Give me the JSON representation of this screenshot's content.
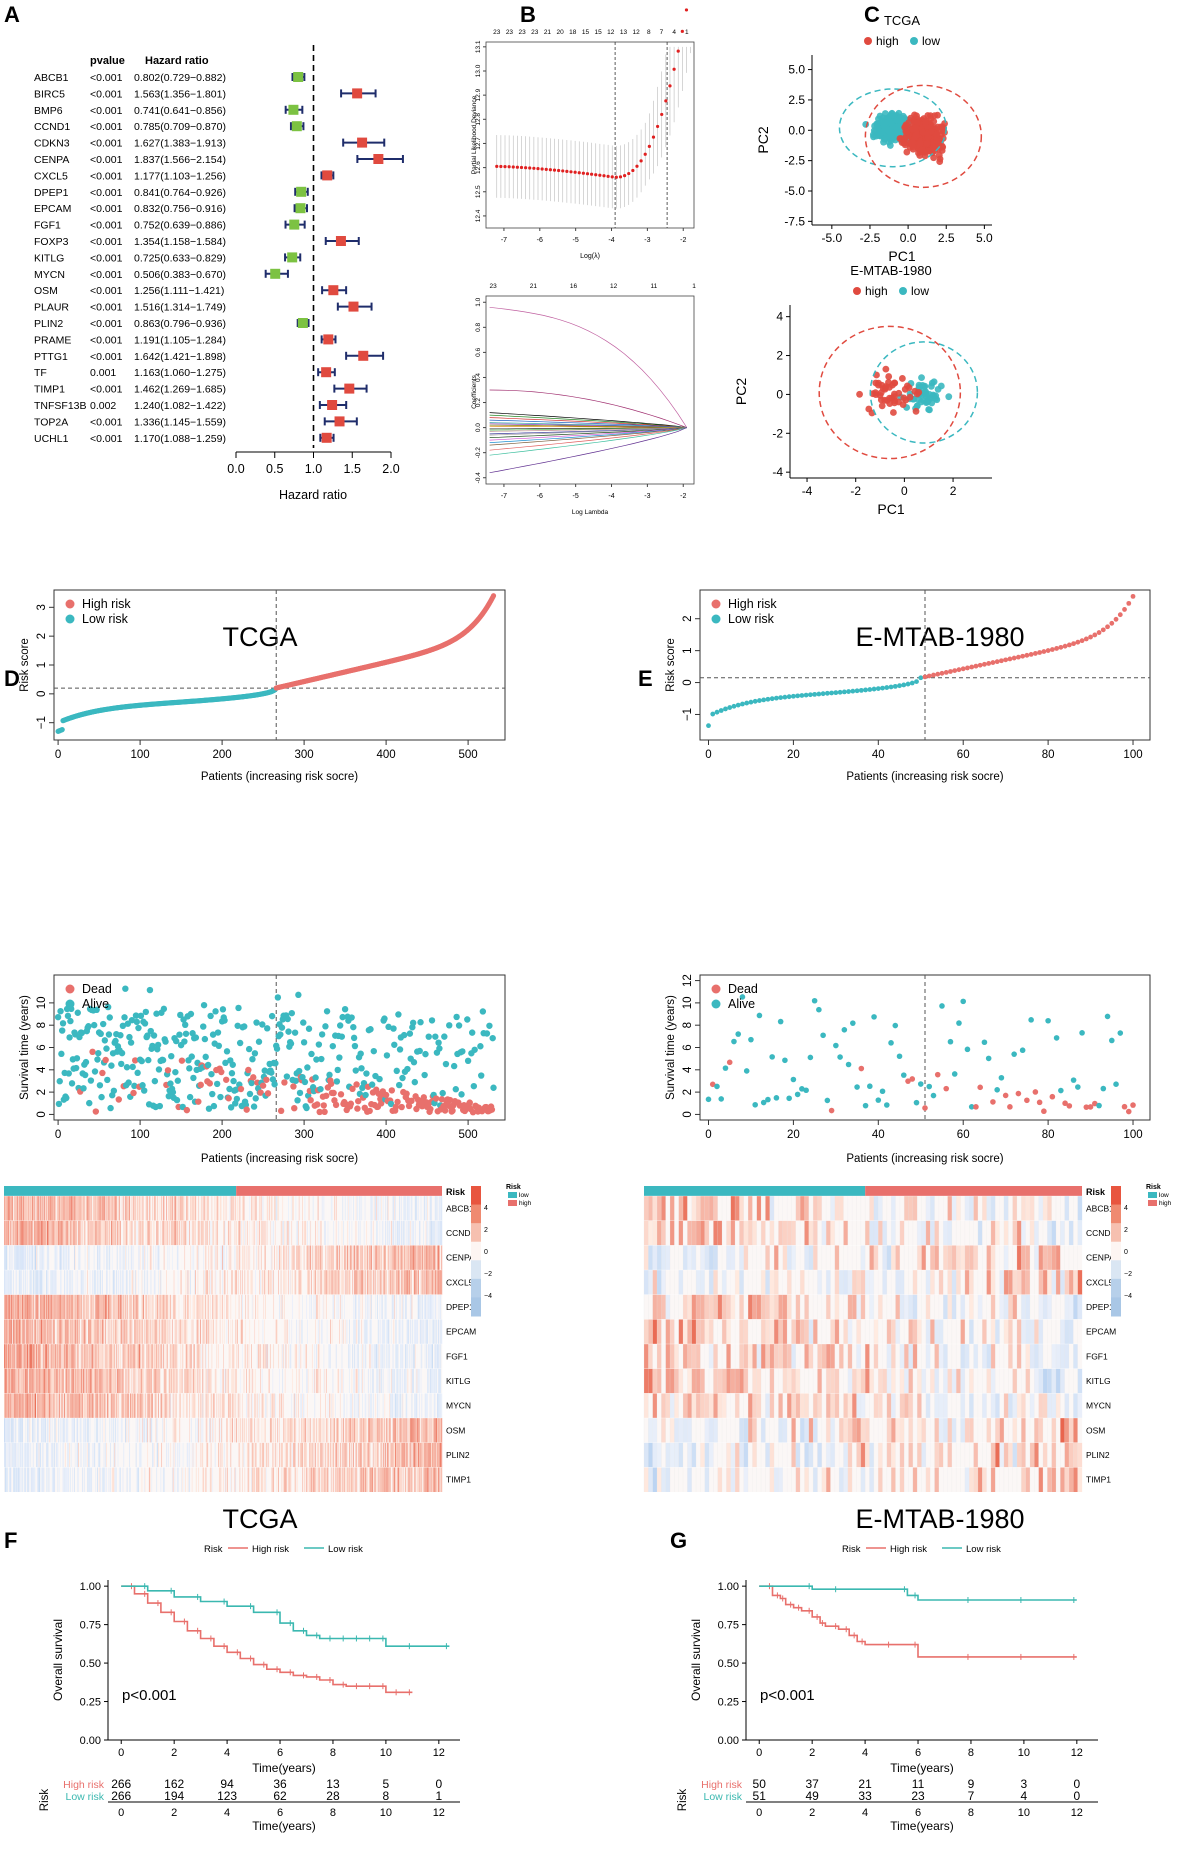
{
  "colors": {
    "red": "#e04a3f",
    "teal": "#3bb8c0",
    "salmon": "#e8706c",
    "green": "#7cc242",
    "navy": "#1f2d6b",
    "km_red": "#e8706c",
    "km_teal": "#3bb8b0"
  },
  "cohorts": {
    "tcga": "TCGA",
    "emtab": "E-MTAB-1980"
  },
  "panels": {
    "A": "A",
    "B": "B",
    "C": "C",
    "D": "D",
    "E": "E",
    "F": "F",
    "G": "G"
  },
  "chart_data": [
    {
      "panel": "A",
      "type": "forest",
      "col_pvalue": "pvalue",
      "col_hr": "Hazard ratio",
      "xlabel": "Hazard ratio",
      "xticks": [
        "0.0",
        "0.5",
        "1.0",
        "1.5",
        "2.0"
      ],
      "xlim": [
        0,
        2
      ],
      "ref_line": 1,
      "rows": [
        {
          "gene": "ABCB1",
          "p": "<0.001",
          "hr_text": "0.802(0.729−0.882)",
          "hr": 0.802,
          "lo": 0.729,
          "hi": 0.882
        },
        {
          "gene": "BIRC5",
          "p": "<0.001",
          "hr_text": "1.563(1.356−1.801)",
          "hr": 1.563,
          "lo": 1.356,
          "hi": 1.801
        },
        {
          "gene": "BMP6",
          "p": "<0.001",
          "hr_text": "0.741(0.641−0.856)",
          "hr": 0.741,
          "lo": 0.641,
          "hi": 0.856
        },
        {
          "gene": "CCND1",
          "p": "<0.001",
          "hr_text": "0.785(0.709−0.870)",
          "hr": 0.785,
          "lo": 0.709,
          "hi": 0.87
        },
        {
          "gene": "CDKN3",
          "p": "<0.001",
          "hr_text": "1.627(1.383−1.913)",
          "hr": 1.627,
          "lo": 1.383,
          "hi": 1.913
        },
        {
          "gene": "CENPA",
          "p": "<0.001",
          "hr_text": "1.837(1.566−2.154)",
          "hr": 1.837,
          "lo": 1.566,
          "hi": 2.154
        },
        {
          "gene": "CXCL5",
          "p": "<0.001",
          "hr_text": "1.177(1.103−1.256)",
          "hr": 1.177,
          "lo": 1.103,
          "hi": 1.256
        },
        {
          "gene": "DPEP1",
          "p": "<0.001",
          "hr_text": "0.841(0.764−0.926)",
          "hr": 0.841,
          "lo": 0.764,
          "hi": 0.926
        },
        {
          "gene": "EPCAM",
          "p": "<0.001",
          "hr_text": "0.832(0.756−0.916)",
          "hr": 0.832,
          "lo": 0.756,
          "hi": 0.916
        },
        {
          "gene": "FGF1",
          "p": "<0.001",
          "hr_text": "0.752(0.639−0.886)",
          "hr": 0.752,
          "lo": 0.639,
          "hi": 0.886
        },
        {
          "gene": "FOXP3",
          "p": "<0.001",
          "hr_text": "1.354(1.158−1.584)",
          "hr": 1.354,
          "lo": 1.158,
          "hi": 1.584
        },
        {
          "gene": "KITLG",
          "p": "<0.001",
          "hr_text": "0.725(0.633−0.829)",
          "hr": 0.725,
          "lo": 0.633,
          "hi": 0.829
        },
        {
          "gene": "MYCN",
          "p": "<0.001",
          "hr_text": "0.506(0.383−0.670)",
          "hr": 0.506,
          "lo": 0.383,
          "hi": 0.67
        },
        {
          "gene": "OSM",
          "p": "<0.001",
          "hr_text": "1.256(1.111−1.421)",
          "hr": 1.256,
          "lo": 1.111,
          "hi": 1.421
        },
        {
          "gene": "PLAUR",
          "p": "<0.001",
          "hr_text": "1.516(1.314−1.749)",
          "hr": 1.516,
          "lo": 1.314,
          "hi": 1.749
        },
        {
          "gene": "PLIN2",
          "p": "<0.001",
          "hr_text": "0.863(0.796−0.936)",
          "hr": 0.863,
          "lo": 0.796,
          "hi": 0.936
        },
        {
          "gene": "PRAME",
          "p": "<0.001",
          "hr_text": "1.191(1.105−1.284)",
          "hr": 1.191,
          "lo": 1.105,
          "hi": 1.284
        },
        {
          "gene": "PTTG1",
          "p": "<0.001",
          "hr_text": "1.642(1.421−1.898)",
          "hr": 1.642,
          "lo": 1.421,
          "hi": 1.898
        },
        {
          "gene": "TF",
          "p": "0.001",
          "hr_text": "1.163(1.060−1.275)",
          "hr": 1.163,
          "lo": 1.06,
          "hi": 1.275
        },
        {
          "gene": "TIMP1",
          "p": "<0.001",
          "hr_text": "1.462(1.269−1.685)",
          "hr": 1.462,
          "lo": 1.269,
          "hi": 1.685
        },
        {
          "gene": "TNFSF13B",
          "p": "0.002",
          "hr_text": "1.240(1.082−1.422)",
          "hr": 1.24,
          "lo": 1.082,
          "hi": 1.422
        },
        {
          "gene": "TOP2A",
          "p": "<0.001",
          "hr_text": "1.336(1.145−1.559)",
          "hr": 1.336,
          "lo": 1.145,
          "hi": 1.559
        },
        {
          "gene": "UCHL1",
          "p": "<0.001",
          "hr_text": "1.170(1.088−1.259)",
          "hr": 1.17,
          "lo": 1.088,
          "hi": 1.259
        }
      ]
    },
    {
      "panel": "B-top",
      "type": "lasso-cv",
      "xlabel": "Log(λ)",
      "ylabel": "Partial Likelihood Deviance",
      "xlim": [
        -7.5,
        -1.7
      ],
      "ylim": [
        12.35,
        13.12
      ],
      "xticks": [
        "-7",
        "-6",
        "-5",
        "-4",
        "-3",
        "-2"
      ],
      "yticks": [
        "12.4",
        "12.5",
        "12.6",
        "12.7",
        "12.8",
        "12.9",
        "13.0",
        "13.1"
      ],
      "top_ticks": [
        "23",
        "23",
        "23",
        "23",
        "21",
        "20",
        "18",
        "15",
        "15",
        "12",
        "13",
        "12",
        "8",
        "7",
        "4",
        "1"
      ],
      "vlines": [
        -3.9,
        -2.45
      ]
    },
    {
      "panel": "B-bottom",
      "type": "lasso-path",
      "xlabel": "Log Lambda",
      "ylabel": "Coefficients",
      "xlim": [
        -7.5,
        -1.7
      ],
      "ylim": [
        -0.45,
        1.05
      ],
      "xticks": [
        "-7",
        "-6",
        "-5",
        "-4",
        "-3",
        "-2"
      ],
      "yticks": [
        "-0.4",
        "-0.2",
        "0.0",
        "0.2",
        "0.4",
        "0.6",
        "0.8",
        "1.0"
      ],
      "top_ticks": [
        "23",
        "21",
        "16",
        "12",
        "11",
        "1"
      ]
    },
    {
      "panel": "C-top",
      "type": "scatter",
      "title": "TCGA",
      "legend_title": "",
      "legend": [
        "high",
        "low"
      ],
      "xlabel": "PC1",
      "ylabel": "PC2",
      "xlim": [
        -6.3,
        5.5
      ],
      "ylim": [
        -7.8,
        6.2
      ],
      "xticks": [
        "-5.0",
        "-2.5",
        "0.0",
        "2.5",
        "5.0"
      ],
      "yticks": [
        "-7.5",
        "-5.0",
        "-2.5",
        "0.0",
        "2.5",
        "5.0"
      ],
      "n_high": 266,
      "n_low": 266
    },
    {
      "panel": "C-bottom",
      "type": "scatter",
      "title": "E-MTAB-1980",
      "legend": [
        "high",
        "low"
      ],
      "xlabel": "PC1",
      "ylabel": "PC2",
      "xlim": [
        -4.7,
        3.6
      ],
      "ylim": [
        -4.3,
        4.6
      ],
      "xticks": [
        "-4",
        "-2",
        "0",
        "2"
      ],
      "yticks": [
        "-4",
        "-2",
        "0",
        "2",
        "4"
      ],
      "n_high": 50,
      "n_low": 51
    },
    {
      "panel": "D-top",
      "type": "scatter",
      "cohort": "TCGA",
      "legend": [
        "High risk",
        "Low risk"
      ],
      "xlabel": "Patients (increasing risk socre)",
      "ylabel": "Risk score",
      "xlim": [
        -5,
        545
      ],
      "ylim": [
        -1.6,
        3.6
      ],
      "xticks": [
        "0",
        "100",
        "200",
        "300",
        "400",
        "500"
      ],
      "yticks": [
        "−1",
        "0",
        "1",
        "2",
        "3"
      ],
      "n": 532,
      "cutoff_index": 266,
      "cutoff_value": 0.2
    },
    {
      "panel": "D-mid",
      "type": "scatter",
      "cohort": "TCGA",
      "legend": [
        "Dead",
        "Alive"
      ],
      "xlabel": "Patients (increasing risk socre)",
      "ylabel": "Survival time (years)",
      "xlim": [
        -5,
        545
      ],
      "ylim": [
        -0.5,
        12.5
      ],
      "xticks": [
        "0",
        "100",
        "200",
        "300",
        "400",
        "500"
      ],
      "yticks": [
        "0",
        "2",
        "4",
        "6",
        "8",
        "10"
      ],
      "n": 532,
      "cutoff_index": 266
    },
    {
      "panel": "D-heat",
      "type": "heatmap",
      "cohort": "TCGA",
      "legend_title": "Risk",
      "group_labels": [
        "low",
        "high"
      ],
      "annotation_label": "Risk",
      "genes": [
        "ABCB1",
        "CCND1",
        "CENPA",
        "CXCL5",
        "DPEP1",
        "EPCAM",
        "FGF1",
        "KITLG",
        "MYCN",
        "OSM",
        "PLIN2",
        "TIMP1"
      ],
      "scale": [
        "4",
        "2",
        "0",
        "−2",
        "−4"
      ],
      "n": 532
    },
    {
      "panel": "E-top",
      "type": "scatter",
      "cohort": "E-MTAB-1980",
      "legend": [
        "High risk",
        "Low risk"
      ],
      "xlabel": "Patients (increasing risk socre)",
      "ylabel": "Risk score",
      "xlim": [
        -2,
        104
      ],
      "ylim": [
        -1.8,
        2.9
      ],
      "xticks": [
        "0",
        "20",
        "40",
        "60",
        "80",
        "100"
      ],
      "yticks": [
        "−1",
        "0",
        "1",
        "2"
      ],
      "n": 101,
      "cutoff_index": 51,
      "cutoff_value": 0.15
    },
    {
      "panel": "E-mid",
      "type": "scatter",
      "cohort": "E-MTAB-1980",
      "legend": [
        "Dead",
        "Alive"
      ],
      "xlabel": "Patients (increasing risk socre)",
      "ylabel": "Survival time (years)",
      "xlim": [
        -2,
        104
      ],
      "ylim": [
        -0.5,
        12.5
      ],
      "xticks": [
        "0",
        "20",
        "40",
        "60",
        "80",
        "100"
      ],
      "yticks": [
        "0",
        "2",
        "4",
        "6",
        "8",
        "10",
        "12"
      ],
      "n": 101,
      "cutoff_index": 51
    },
    {
      "panel": "E-heat",
      "type": "heatmap",
      "cohort": "E-MTAB-1980",
      "legend_title": "Risk",
      "group_labels": [
        "low",
        "high"
      ],
      "annotation_label": "Risk",
      "genes": [
        "ABCB1",
        "CCND1",
        "CENPA",
        "CXCL5",
        "DPEP1",
        "EPCAM",
        "FGF1",
        "KITLG",
        "MYCN",
        "OSM",
        "PLIN2",
        "TIMP1"
      ],
      "scale": [
        "4",
        "2",
        "0",
        "−2",
        "−4"
      ],
      "n": 101
    },
    {
      "panel": "F",
      "type": "line",
      "cohort": "TCGA",
      "legend_title": "Risk",
      "legend": [
        "High risk",
        "Low risk"
      ],
      "xlabel": "Time(years)",
      "ylabel": "Overall survival",
      "pvalue": "p<0.001",
      "xlim": [
        -0.5,
        12.8
      ],
      "ylim": [
        0,
        1.04
      ],
      "xticks": [
        "0",
        "2",
        "4",
        "6",
        "8",
        "10",
        "12"
      ],
      "yticks": [
        "0.00",
        "0.25",
        "0.50",
        "0.75",
        "1.00"
      ],
      "series": [
        {
          "name": "High risk",
          "x": [
            0,
            0.5,
            1,
            1.5,
            2,
            2.5,
            3,
            3.5,
            4,
            4.5,
            5,
            5.5,
            6,
            6.5,
            7,
            7.5,
            8,
            8.5,
            9,
            9.5,
            10,
            10.5,
            11
          ],
          "y": [
            1,
            0.95,
            0.89,
            0.83,
            0.77,
            0.71,
            0.66,
            0.61,
            0.57,
            0.53,
            0.49,
            0.46,
            0.44,
            0.42,
            0.41,
            0.39,
            0.36,
            0.35,
            0.35,
            0.35,
            0.31,
            0.31,
            0.31
          ]
        },
        {
          "name": "Low risk",
          "x": [
            0,
            1,
            2,
            3,
            4,
            5,
            6,
            6.5,
            7,
            7.5,
            8,
            8.5,
            9,
            9.5,
            10,
            11,
            12.4
          ],
          "y": [
            1,
            0.97,
            0.93,
            0.9,
            0.87,
            0.83,
            0.76,
            0.71,
            0.68,
            0.66,
            0.66,
            0.66,
            0.66,
            0.66,
            0.61,
            0.61,
            0.61
          ]
        }
      ],
      "risk_table": {
        "title": "Risk",
        "xlabel": "Time(years)",
        "rows": [
          {
            "name": "High risk",
            "counts": [
              "266",
              "162",
              "94",
              "36",
              "13",
              "5",
              "0"
            ]
          },
          {
            "name": "Low risk",
            "counts": [
              "266",
              "194",
              "123",
              "62",
              "28",
              "8",
              "1"
            ]
          }
        ]
      }
    },
    {
      "panel": "G",
      "type": "line",
      "cohort": "E-MTAB-1980",
      "legend_title": "Risk",
      "legend": [
        "High risk",
        "Low risk"
      ],
      "xlabel": "Time(years)",
      "ylabel": "Overall survival",
      "pvalue": "p<0.001",
      "xlim": [
        -0.5,
        12.8
      ],
      "ylim": [
        0,
        1.04
      ],
      "xticks": [
        "0",
        "2",
        "4",
        "6",
        "8",
        "10",
        "12"
      ],
      "yticks": [
        "0.00",
        "0.25",
        "0.50",
        "0.75",
        "1.00"
      ],
      "series": [
        {
          "name": "High risk",
          "x": [
            0,
            0.5,
            0.8,
            1,
            1.3,
            1.6,
            2,
            2.3,
            2.5,
            3,
            3.4,
            3.7,
            4,
            5,
            6,
            8,
            10,
            12
          ],
          "y": [
            1,
            0.94,
            0.92,
            0.88,
            0.86,
            0.84,
            0.8,
            0.76,
            0.74,
            0.72,
            0.68,
            0.64,
            0.62,
            0.62,
            0.54,
            0.54,
            0.54,
            0.54
          ]
        },
        {
          "name": "Low risk",
          "x": [
            0,
            2,
            3,
            5.6,
            6,
            8,
            10,
            12
          ],
          "y": [
            1,
            0.98,
            0.98,
            0.94,
            0.91,
            0.91,
            0.91,
            0.91
          ]
        }
      ],
      "risk_table": {
        "title": "Risk",
        "xlabel": "Time(years)",
        "rows": [
          {
            "name": "High risk",
            "counts": [
              "50",
              "37",
              "21",
              "11",
              "9",
              "3",
              "0"
            ]
          },
          {
            "name": "Low risk",
            "counts": [
              "51",
              "49",
              "33",
              "23",
              "7",
              "4",
              "0"
            ]
          }
        ]
      }
    }
  ]
}
